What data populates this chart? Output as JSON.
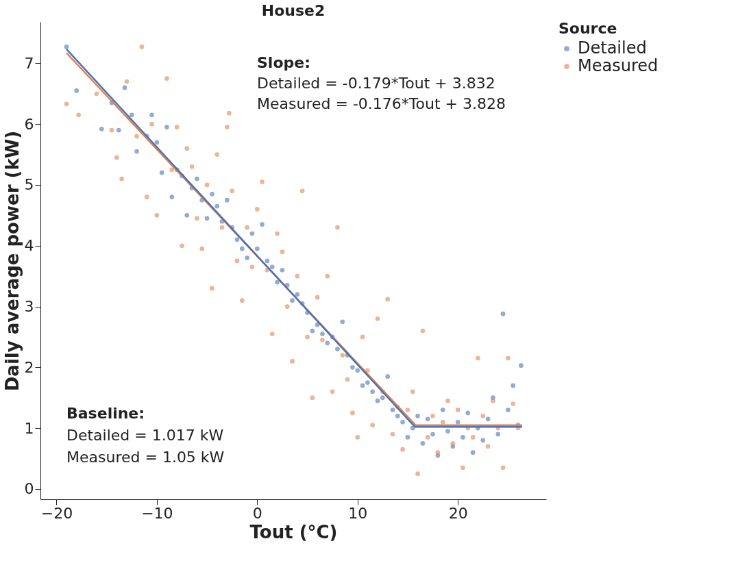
{
  "chart_data": {
    "type": "scatter",
    "title": "House2",
    "xlabel": "Tout (°C)",
    "ylabel": "Daily average power (kW)",
    "legend_title": "Source",
    "xlim": [
      -21.6,
      28.8
    ],
    "ylim": [
      -0.17,
      7.68
    ],
    "xticks": [
      -20,
      -10,
      0,
      10,
      20
    ],
    "yticks": [
      0,
      1,
      2,
      3,
      4,
      5,
      6,
      7
    ],
    "grid": false,
    "legend": "right",
    "annotations": [
      "Slope:",
      "Detailed = -0.179*Tout + 3.832",
      "Measured = -0.176*Tout + 3.828",
      "Baseline:",
      "Detailed = 1.017 kW",
      "Measured = 1.05 kW"
    ],
    "series": [
      {
        "name": "Detailed",
        "color": "#4c72b0",
        "marker": "circle",
        "x": [
          -19,
          -18,
          -15.5,
          -14.5,
          -13.8,
          -13.2,
          -12.5,
          -12,
          -11,
          -10.5,
          -10,
          -9.5,
          -9,
          -8.5,
          -8,
          -7.5,
          -7,
          -6.5,
          -6,
          -5.5,
          -5,
          -4.5,
          -4,
          -3.5,
          -3,
          -2.5,
          -2,
          -1.5,
          -1,
          -0.5,
          0,
          0.5,
          1,
          1.5,
          2,
          2.5,
          3,
          3.5,
          4,
          4.5,
          5,
          5.5,
          6,
          6.5,
          7,
          7.5,
          8,
          8.5,
          9,
          9.5,
          10,
          10.5,
          11,
          11.5,
          12,
          12.5,
          13,
          13.5,
          14,
          14.5,
          15,
          15.5,
          16,
          16.5,
          17,
          17.5,
          18,
          18.5,
          19,
          19.5,
          20,
          20.5,
          21,
          21.5,
          22,
          22.5,
          23,
          23.5,
          24,
          24.5,
          25,
          25.5,
          26,
          26.3
        ],
        "values": [
          7.27,
          6.55,
          5.92,
          6.35,
          5.9,
          6.6,
          6.15,
          5.55,
          5.8,
          6.15,
          5.7,
          5.2,
          5.95,
          4.8,
          5.25,
          5.15,
          4.5,
          4.95,
          5.1,
          4.75,
          4.45,
          4.85,
          4.65,
          4.4,
          4.75,
          4.3,
          4.1,
          3.95,
          3.8,
          4.2,
          3.95,
          4.35,
          3.75,
          3.65,
          3.4,
          3.6,
          3.35,
          3.1,
          3.2,
          3.05,
          2.9,
          2.6,
          2.7,
          2.55,
          2.4,
          2.5,
          2.3,
          2.75,
          2.2,
          2.0,
          1.95,
          1.7,
          1.75,
          1.6,
          1.45,
          1.5,
          1.85,
          1.3,
          1.2,
          1.1,
          0.85,
          1.0,
          1.2,
          0.75,
          1.15,
          0.9,
          0.55,
          1.3,
          0.95,
          0.7,
          1.1,
          0.85,
          1.25,
          0.6,
          1.0,
          0.8,
          1.15,
          1.5,
          0.9,
          2.88,
          1.3,
          1.7,
          1.05,
          2.03
        ]
      },
      {
        "name": "Measured",
        "color": "#dd8452",
        "marker": "circle",
        "x": [
          -19,
          -17.8,
          -16,
          -14.5,
          -14,
          -13.5,
          -13,
          -12,
          -11.5,
          -11,
          -10.5,
          -10,
          -9,
          -8.5,
          -8,
          -7.5,
          -7,
          -6.5,
          -6,
          -5.5,
          -5,
          -4.5,
          -4,
          -3.5,
          -3,
          -2.8,
          -2.5,
          -2,
          -1.5,
          -1,
          -0.5,
          0,
          0.5,
          1,
          1.5,
          2,
          2.5,
          3,
          3.5,
          4,
          4.5,
          5,
          5.5,
          6,
          6.5,
          7,
          7.5,
          8,
          8.5,
          9,
          9.5,
          10,
          10.5,
          11,
          11.5,
          12,
          12.5,
          13,
          13.5,
          14,
          14.5,
          15,
          15.5,
          16,
          16.5,
          17,
          17.5,
          18,
          18.5,
          19,
          19.5,
          20,
          20.5,
          21,
          21.5,
          22,
          22.5,
          23,
          23.5,
          24,
          24.5,
          25,
          25.5,
          26
        ],
        "values": [
          6.33,
          6.15,
          6.5,
          5.9,
          5.45,
          5.1,
          6.7,
          5.8,
          7.27,
          4.8,
          6.0,
          4.5,
          6.75,
          5.25,
          5.95,
          4.0,
          5.6,
          5.3,
          4.45,
          3.95,
          5.0,
          3.3,
          5.5,
          4.3,
          5.95,
          6.18,
          4.9,
          3.75,
          3.1,
          4.3,
          3.65,
          4.6,
          5.05,
          3.6,
          2.55,
          4.2,
          3.9,
          3.0,
          2.1,
          3.5,
          4.9,
          2.5,
          1.5,
          3.15,
          2.45,
          3.5,
          1.6,
          4.3,
          2.2,
          1.8,
          1.25,
          0.85,
          2.5,
          1.95,
          1.05,
          2.8,
          1.6,
          3.12,
          0.9,
          1.35,
          0.65,
          1.3,
          1.6,
          0.25,
          2.6,
          0.85,
          1.2,
          0.6,
          1.1,
          1.45,
          0.75,
          1.3,
          0.35,
          1.0,
          0.85,
          2.15,
          1.2,
          0.7,
          1.45,
          1.0,
          0.35,
          2.15,
          1.4,
          1.0
        ]
      },
      {
        "color": "#dd8452",
        "type": "line",
        "x": [
          -19,
          15.78,
          26.4
        ],
        "values": [
          7.17,
          1.05,
          1.05
        ]
      },
      {
        "color": "#4c72b0",
        "type": "line",
        "x": [
          -19,
          15.73,
          26.4
        ],
        "values": [
          7.23,
          1.02,
          1.02
        ]
      }
    ]
  }
}
